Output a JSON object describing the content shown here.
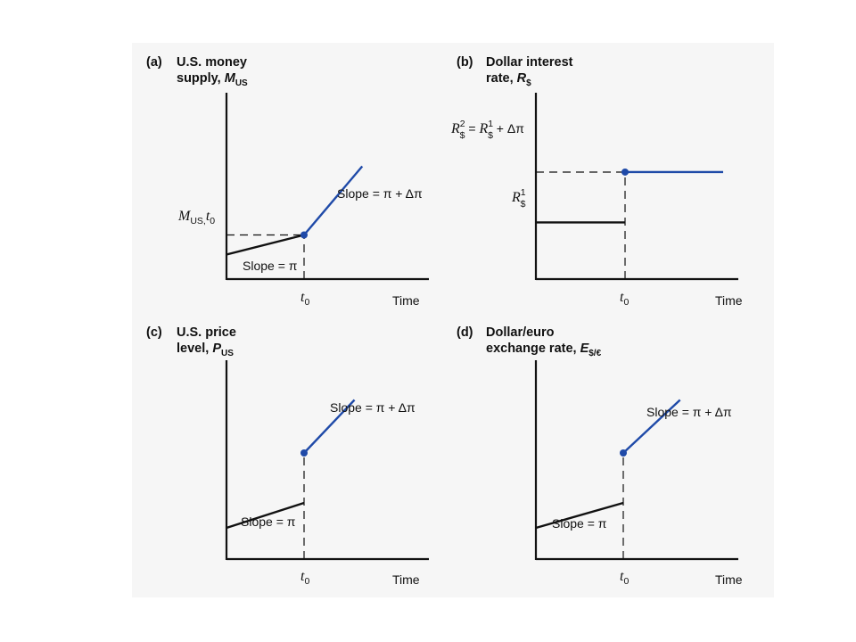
{
  "colors": {
    "before": "#111111",
    "after": "#1f4aa8",
    "background": "#f6f6f6"
  },
  "chart_data": [
    {
      "type": "line",
      "panel": "(a)",
      "title_lines": [
        "U.S. money",
        "supply, "
      ],
      "title_var": "M",
      "title_sub": "US",
      "xlabel": "Time",
      "x_tick": {
        "var": "t",
        "sub": "0"
      },
      "y_marker": {
        "var": "M",
        "sub": "US,",
        "var2": "t",
        "sub2": "0"
      },
      "slope_before": "Slope = π",
      "slope_after": "Slope = π + Δπ",
      "series": [
        {
          "values": [
            [
              0,
              1.0
            ],
            [
              1,
              1.8
            ]
          ]
        },
        {
          "values": [
            [
              1,
              1.8
            ],
            [
              1.75,
              4.6
            ]
          ]
        }
      ],
      "jump_point": [
        1,
        1.8
      ]
    },
    {
      "type": "line",
      "panel": "(b)",
      "title_lines": [
        "Dollar interest",
        "rate, "
      ],
      "title_var": "R",
      "title_sub": "$",
      "xlabel": "Time",
      "x_tick": {
        "var": "t",
        "sub": "0"
      },
      "y_marker_low": {
        "var": "R",
        "sub": "$",
        "sup": "1"
      },
      "y_marker_high": {
        "text": "R$² = R$¹ + Δπ"
      },
      "y_marker_high_parts": [
        "R",
        "2",
        "$",
        " = ",
        "R",
        "1",
        "$",
        " + Δπ"
      ],
      "series": [
        {
          "values": [
            [
              0,
              1.8
            ],
            [
              1,
              1.8
            ]
          ]
        },
        {
          "values": [
            [
              1,
              3.4
            ],
            [
              2.1,
              3.4
            ]
          ]
        }
      ],
      "jump_point": [
        1,
        3.4
      ]
    },
    {
      "type": "line",
      "panel": "(c)",
      "title_lines": [
        "U.S. price",
        "level, "
      ],
      "title_var": "P",
      "title_sub": "US",
      "xlabel": "Time",
      "x_tick": {
        "var": "t",
        "sub": "0"
      },
      "slope_before": "Slope = π",
      "slope_after": "Slope = π + Δπ",
      "series": [
        {
          "values": [
            [
              0,
              1.0
            ],
            [
              1,
              1.8
            ]
          ]
        },
        {
          "values": [
            [
              1,
              3.4
            ],
            [
              1.65,
              5.1
            ]
          ]
        }
      ],
      "jump_point": [
        1,
        3.4
      ]
    },
    {
      "type": "line",
      "panel": "(d)",
      "title_lines": [
        "Dollar/euro",
        "exchange rate, "
      ],
      "title_var": "E",
      "title_sub": "$/€",
      "xlabel": "Time",
      "x_tick": {
        "var": "t",
        "sub": "0"
      },
      "slope_before": "Slope = π",
      "slope_after": "Slope = π + Δπ",
      "series": [
        {
          "values": [
            [
              0,
              1.0
            ],
            [
              1,
              1.8
            ]
          ]
        },
        {
          "values": [
            [
              1,
              3.4
            ],
            [
              1.65,
              5.1
            ]
          ]
        }
      ],
      "jump_point": [
        1,
        3.4
      ]
    }
  ]
}
